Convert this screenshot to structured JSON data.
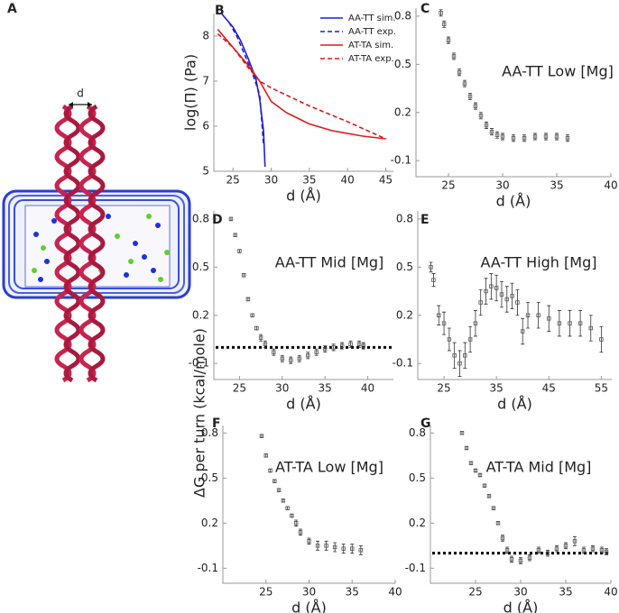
{
  "panel_a": {
    "label": "A",
    "d_label": "d"
  },
  "figure": {
    "ylabel": "ΔG per turn (kcal/mole)"
  },
  "chart_data": [
    {
      "type": "line",
      "panel": "B",
      "ylabel": "log(Π) (Pa)",
      "xlabel": "d (Å)",
      "xlim": [
        22.5,
        46
      ],
      "xticks": [
        25,
        30,
        35,
        40,
        45
      ],
      "ylim": [
        5,
        8.5
      ],
      "yticks": [
        5,
        6,
        7,
        8
      ],
      "legend": "upper right",
      "series": [
        {
          "name": "AA-TT sim.",
          "color": "#1f1fd6",
          "dash": false,
          "x": [
            23.5,
            25,
            26,
            27,
            28,
            28.5,
            29,
            29.2
          ],
          "values": [
            8.5,
            8.2,
            7.9,
            7.5,
            7.05,
            6.6,
            5.9,
            5.1
          ]
        },
        {
          "name": "AA-TT exp.",
          "color": "#1f1fd6",
          "dash": true,
          "x": [
            24.5,
            25.5,
            26.5,
            27.5,
            28.5,
            29
          ],
          "values": [
            8.3,
            8.0,
            7.6,
            7.2,
            6.7,
            5.6
          ]
        },
        {
          "name": "AT-TA sim.",
          "color": "#e01818",
          "dash": false,
          "x": [
            23,
            25,
            27,
            28.5,
            30,
            32,
            35,
            38,
            42,
            45
          ],
          "values": [
            8.15,
            7.75,
            7.35,
            7.0,
            6.55,
            6.3,
            6.05,
            5.9,
            5.78,
            5.72
          ]
        },
        {
          "name": "AT-TA exp.",
          "color": "#e01818",
          "dash": true,
          "x": [
            23,
            25,
            27,
            28.5,
            30,
            35,
            40,
            45
          ],
          "values": [
            8.05,
            7.75,
            7.3,
            7.0,
            6.85,
            6.45,
            6.1,
            5.72
          ]
        }
      ]
    },
    {
      "type": "errorbar",
      "panel": "C",
      "title": "AA-TT Low [Mg]",
      "xlabel": "d (Å)",
      "xlim": [
        22,
        40
      ],
      "xticks": [
        25,
        30,
        35,
        40
      ],
      "ylim": [
        -0.2,
        0.85
      ],
      "yticks": [
        -0.1,
        0.2,
        0.5,
        0.8
      ],
      "color": "#555555",
      "x": [
        24.3,
        24.6,
        25,
        25.5,
        26,
        26.5,
        27,
        27.5,
        28,
        28.5,
        29,
        29.5,
        30,
        31,
        32,
        33,
        34,
        35,
        36
      ],
      "values": [
        0.82,
        0.75,
        0.65,
        0.55,
        0.45,
        0.38,
        0.3,
        0.24,
        0.18,
        0.12,
        0.08,
        0.06,
        0.05,
        0.04,
        0.04,
        0.05,
        0.05,
        0.05,
        0.04
      ],
      "errors": [
        0.02,
        0.02,
        0.02,
        0.02,
        0.02,
        0.02,
        0.02,
        0.02,
        0.02,
        0.02,
        0.02,
        0.02,
        0.02,
        0.02,
        0.02,
        0.02,
        0.02,
        0.02,
        0.02
      ]
    },
    {
      "type": "errorbar",
      "panel": "D",
      "title": "AA-TT Mid [Mg]",
      "xlabel": "d (Å)",
      "xlim": [
        22,
        43
      ],
      "xticks": [
        25,
        30,
        35,
        40
      ],
      "ylim": [
        -0.2,
        0.85
      ],
      "yticks": [
        -0.1,
        0.2,
        0.5,
        0.8
      ],
      "color": "#555555",
      "hline": 0,
      "x": [
        24,
        24.5,
        25,
        25.5,
        26,
        26.5,
        27,
        27.5,
        28,
        29,
        30,
        31,
        32,
        33,
        34,
        35,
        36,
        37,
        38,
        39,
        39.5
      ],
      "values": [
        0.8,
        0.7,
        0.6,
        0.45,
        0.3,
        0.2,
        0.12,
        0.06,
        0.02,
        -0.03,
        -0.07,
        -0.08,
        -0.07,
        -0.05,
        -0.03,
        -0.01,
        0.0,
        0.01,
        0.02,
        0.02,
        0.01
      ],
      "errors": [
        0.01,
        0.01,
        0.01,
        0.01,
        0.01,
        0.01,
        0.01,
        0.02,
        0.02,
        0.02,
        0.02,
        0.02,
        0.02,
        0.02,
        0.02,
        0.02,
        0.02,
        0.02,
        0.02,
        0.02,
        0.02
      ]
    },
    {
      "type": "errorbar",
      "panel": "E",
      "title": "AA-TT High [Mg]",
      "xlabel": "d (Å)",
      "xlim": [
        20,
        57
      ],
      "xticks": [
        25,
        35,
        45,
        55
      ],
      "ylim": [
        -0.2,
        0.85
      ],
      "yticks": [
        -0.1,
        0.2,
        0.5,
        0.8
      ],
      "color": "#555555",
      "x": [
        22.5,
        23,
        24,
        25,
        26,
        27,
        28,
        29,
        30,
        31,
        32,
        33,
        34,
        35,
        36,
        37,
        38,
        39,
        40,
        41,
        43,
        45,
        47,
        49,
        51,
        53,
        55
      ],
      "values": [
        0.5,
        0.42,
        0.2,
        0.15,
        0.05,
        -0.05,
        -0.1,
        -0.05,
        0.05,
        0.15,
        0.28,
        0.35,
        0.38,
        0.37,
        0.33,
        0.3,
        0.32,
        0.28,
        0.1,
        0.2,
        0.2,
        0.18,
        0.15,
        0.15,
        0.15,
        0.12,
        0.05
      ],
      "errors": [
        0.03,
        0.04,
        0.06,
        0.07,
        0.07,
        0.08,
        0.08,
        0.08,
        0.08,
        0.08,
        0.08,
        0.08,
        0.08,
        0.08,
        0.08,
        0.08,
        0.08,
        0.08,
        0.08,
        0.08,
        0.08,
        0.08,
        0.08,
        0.08,
        0.08,
        0.08,
        0.08
      ]
    },
    {
      "type": "errorbar",
      "panel": "F",
      "title": "AT-TA Low [Mg]",
      "xlabel": "d (Å)",
      "xlim": [
        20,
        40
      ],
      "xticks": [
        25,
        30,
        35,
        40
      ],
      "ylim": [
        -0.2,
        0.85
      ],
      "yticks": [
        -0.1,
        0.2,
        0.5,
        0.8
      ],
      "color": "#555555",
      "x": [
        24.5,
        25,
        25.5,
        26,
        26.5,
        27,
        27.5,
        28,
        28.5,
        29,
        30,
        31,
        32,
        33,
        34,
        35,
        36
      ],
      "values": [
        0.78,
        0.65,
        0.55,
        0.48,
        0.42,
        0.35,
        0.3,
        0.25,
        0.2,
        0.14,
        0.08,
        0.05,
        0.05,
        0.04,
        0.03,
        0.03,
        0.02
      ],
      "errors": [
        0.01,
        0.01,
        0.01,
        0.01,
        0.01,
        0.01,
        0.01,
        0.01,
        0.02,
        0.02,
        0.02,
        0.03,
        0.03,
        0.03,
        0.03,
        0.03,
        0.03
      ]
    },
    {
      "type": "errorbar",
      "panel": "G",
      "title": "AT-TA Mid [Mg]",
      "xlabel": "d (Å)",
      "xlim": [
        20,
        40
      ],
      "xticks": [
        25,
        30,
        35,
        40
      ],
      "ylim": [
        -0.2,
        0.85
      ],
      "yticks": [
        -0.1,
        0.2,
        0.5,
        0.8
      ],
      "color": "#555555",
      "hline": 0,
      "x": [
        23.5,
        24,
        24.5,
        25,
        25.5,
        26,
        26.5,
        27,
        27.5,
        28,
        28.5,
        29,
        30,
        31,
        32,
        33,
        34,
        35,
        36,
        37,
        38,
        39,
        39.5
      ],
      "values": [
        0.8,
        0.7,
        0.6,
        0.55,
        0.52,
        0.45,
        0.38,
        0.3,
        0.2,
        0.1,
        0.02,
        -0.04,
        -0.05,
        -0.03,
        0.02,
        0.0,
        0.03,
        0.05,
        0.08,
        0.02,
        0.03,
        0.02,
        0.01
      ],
      "errors": [
        0.01,
        0.01,
        0.01,
        0.01,
        0.01,
        0.01,
        0.01,
        0.01,
        0.01,
        0.02,
        0.02,
        0.02,
        0.02,
        0.02,
        0.02,
        0.02,
        0.02,
        0.02,
        0.03,
        0.02,
        0.02,
        0.02,
        0.02
      ]
    }
  ]
}
